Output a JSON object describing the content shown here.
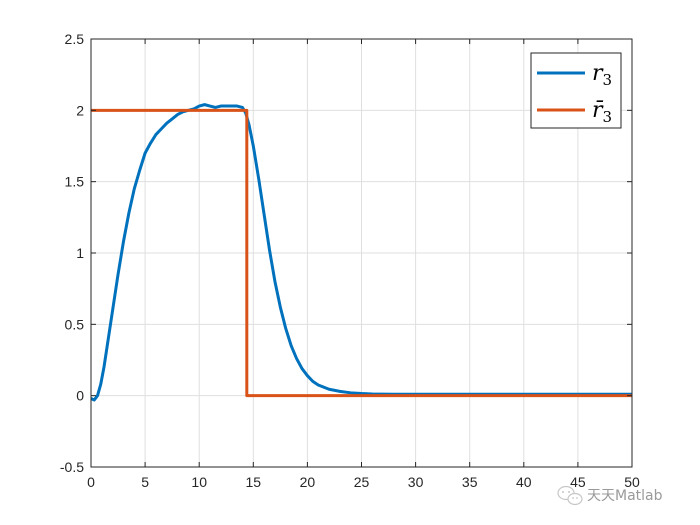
{
  "chart_data": {
    "type": "line",
    "title": "",
    "xlabel": "",
    "ylabel": "",
    "xlim": [
      0,
      50
    ],
    "ylim": [
      -0.5,
      2.5
    ],
    "xticks": [
      0,
      5,
      10,
      15,
      20,
      25,
      30,
      35,
      40,
      45,
      50
    ],
    "xtick_labels": [
      "0",
      "5",
      "10",
      "15",
      "20",
      "25",
      "30",
      "35",
      "40",
      "45",
      "50"
    ],
    "yticks": [
      -0.5,
      0,
      0.5,
      1,
      1.5,
      2,
      2.5
    ],
    "ytick_labels": [
      "-0.5",
      "0",
      "0.5",
      "1",
      "1.5",
      "2",
      "2.5"
    ],
    "grid": true,
    "legend_position": "top-right",
    "series": [
      {
        "name": "r",
        "name_subscript": "3",
        "color": "#0072BD",
        "x": [
          0,
          0.3,
          0.6,
          0.9,
          1.2,
          1.5,
          2,
          2.5,
          3,
          3.5,
          4,
          4.5,
          5,
          5.5,
          6,
          6.5,
          7,
          7.5,
          8,
          8.5,
          9,
          9.5,
          10,
          10.5,
          11,
          11.5,
          12,
          12.5,
          13,
          13.5,
          14,
          14.3,
          14.6,
          15,
          15.5,
          16,
          16.5,
          17,
          17.5,
          18,
          18.5,
          19,
          19.5,
          20,
          20.5,
          21,
          22,
          23,
          24,
          25,
          26,
          28,
          30,
          35,
          40,
          45,
          50
        ],
        "y": [
          -0.02,
          -0.03,
          0.0,
          0.08,
          0.2,
          0.35,
          0.6,
          0.85,
          1.08,
          1.28,
          1.45,
          1.58,
          1.7,
          1.77,
          1.83,
          1.87,
          1.91,
          1.94,
          1.97,
          1.99,
          2.0,
          2.01,
          2.03,
          2.04,
          2.03,
          2.02,
          2.03,
          2.03,
          2.03,
          2.03,
          2.02,
          1.98,
          1.9,
          1.75,
          1.52,
          1.27,
          1.02,
          0.8,
          0.62,
          0.47,
          0.35,
          0.26,
          0.19,
          0.14,
          0.1,
          0.075,
          0.045,
          0.03,
          0.02,
          0.015,
          0.012,
          0.01,
          0.01,
          0.01,
          0.01,
          0.01,
          0.01
        ]
      },
      {
        "name": "r̄",
        "name_subscript": "3",
        "color": "#D95319",
        "x": [
          0,
          14.4,
          14.4,
          50
        ],
        "y": [
          2,
          2,
          0,
          0
        ]
      }
    ]
  },
  "watermark": {
    "text": "天天Matlab",
    "icon": "wechat-icon"
  },
  "colors": {
    "axis": "#262626",
    "grid": "#dfdfdf"
  }
}
